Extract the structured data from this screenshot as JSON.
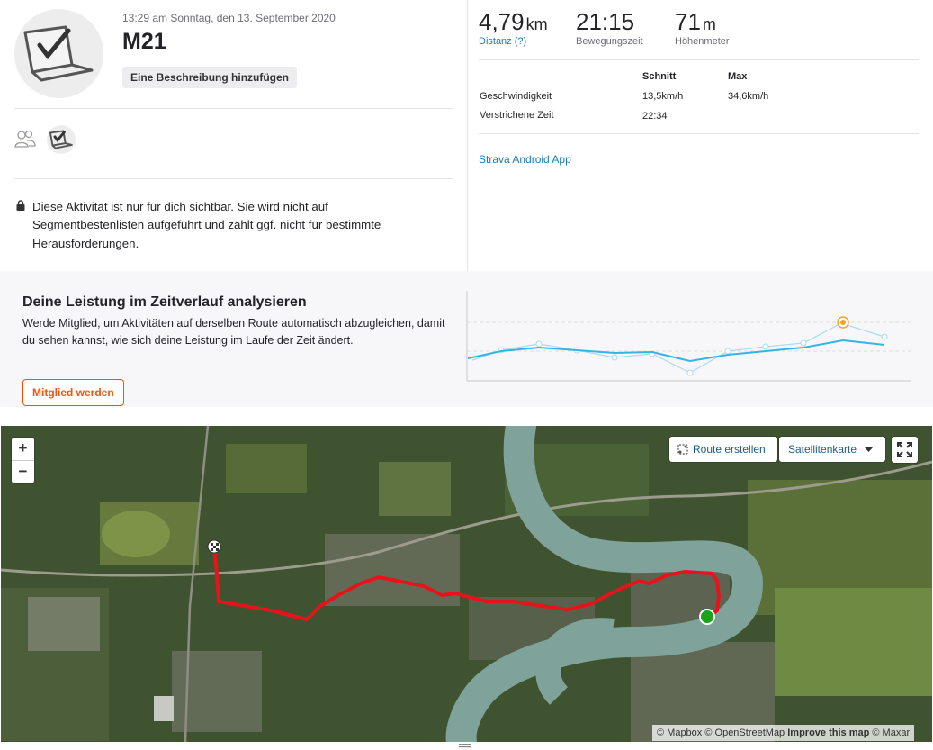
{
  "activity": {
    "datetime": "13:29 am Sonntag, den 13. September 2020",
    "title": "M21",
    "description_button": "Eine Beschreibung hinzufügen",
    "avatar_icon": "laptop-checkmark-icon",
    "privacy_notice": "Diese Aktivität ist nur für dich sichtbar. Sie wird nicht auf Segmentbestenlisten aufgeführt und zählt ggf. nicht für bestimmte Herausforderungen."
  },
  "stats": {
    "distance": {
      "value": "4,79",
      "unit": "km",
      "label": "Distanz (?)"
    },
    "moving_time": {
      "value": "21:15",
      "label": "Bewegungszeit"
    },
    "elevation": {
      "value": "71",
      "unit": "m",
      "label": "Höhenmeter"
    },
    "table": {
      "headers": [
        "Schnitt",
        "Max"
      ],
      "rows": [
        {
          "label": "Geschwindigkeit",
          "avg": "13,5km/h",
          "max": "34,6km/h"
        },
        {
          "label": "Verstrichene Zeit",
          "avg": "22:34",
          "max": ""
        }
      ]
    },
    "device": "Strava Android App"
  },
  "analysis": {
    "title": "Deine Leistung im Zeitverlauf analysieren",
    "text": "Werde Mitglied, um Aktivitäten auf derselben Route automatisch abzugleichen, damit du sehen kannst, wie sich deine Leistung im Laufe der Zeit ändert.",
    "button": "Mitglied werden",
    "colors": {
      "line": "#35b5e5",
      "highlight": "#f5a623"
    }
  },
  "map": {
    "zoom_in": "+",
    "zoom_out": "−",
    "route_button": "Route erstellen",
    "layer_select": "Satellitenkarte",
    "attribution": {
      "mapbox": "© Mapbox",
      "osm": "© OpenStreetMap",
      "improve": "Improve this map",
      "maxar": "© Maxar"
    },
    "colors": {
      "route": "#e5141b",
      "start_marker": "#1aa31a",
      "river": "#7fa39a"
    }
  }
}
